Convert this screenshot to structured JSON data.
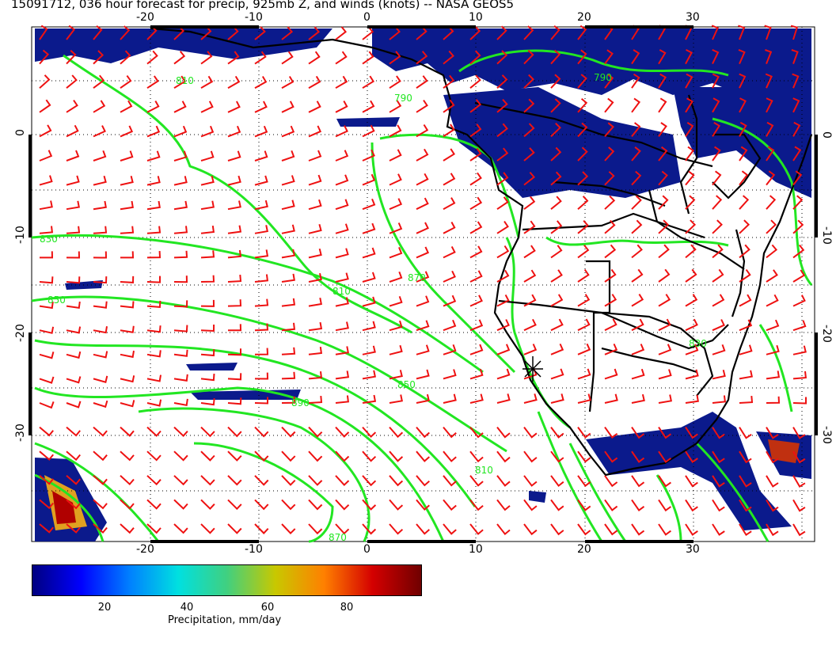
{
  "title": "15091712, 036 hour forecast for precip, 925mb Z, and winds (knots) -- NASA GEOS5",
  "map": {
    "region": "Southern Africa and South Atlantic",
    "lon_ticks": [
      "-20",
      "-10",
      "0",
      "10",
      "20",
      "30"
    ],
    "lat_ticks": [
      "0",
      "-10",
      "-20",
      "-30"
    ],
    "contour_labels": [
      "810",
      "790",
      "830",
      "870",
      "850",
      "890",
      "810",
      "850",
      "810",
      "830",
      "790",
      "870"
    ],
    "colors": {
      "precip_fill": "#0b1a8c",
      "contour": "#22e622",
      "wind_barb": "#ee1111",
      "coast": "#000000",
      "grid": "#000000"
    },
    "marker": "star"
  },
  "colorbar": {
    "ticks": [
      "20",
      "40",
      "60",
      "80"
    ],
    "label": "Precipitation, mm/day",
    "gradient": [
      "#000080",
      "#0000ff",
      "#0080ff",
      "#00e0e0",
      "#40d080",
      "#c8c800",
      "#ff8000",
      "#d40000",
      "#700000"
    ]
  }
}
